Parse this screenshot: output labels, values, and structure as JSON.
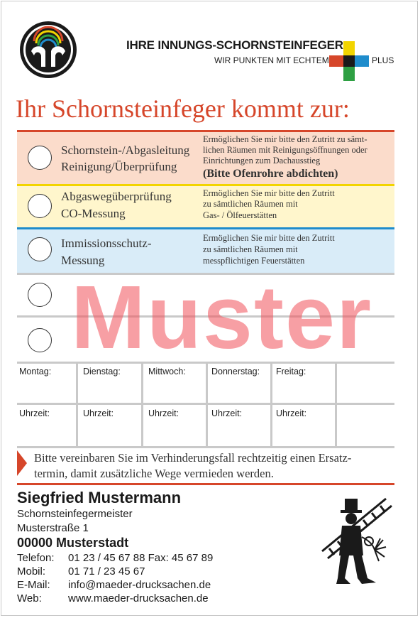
{
  "header": {
    "brand_title": "IHRE INNUNGS-SCHORNSTEINFEGER",
    "brand_subtitle": "WIR PUNKTEN MIT ECHTEM",
    "brand_plus": "PLUS",
    "headline": "Ihr Schornsteinfeger kommt zur:",
    "colors": {
      "accent": "#d6462a",
      "yellow": "#f2d400",
      "blue": "#1f8ccc",
      "green": "#2ea043"
    }
  },
  "options": [
    {
      "label_line1": "Schornstein-/Abgasleitung",
      "label_line2": "Reinigung/Überprüfung",
      "desc_line1": "Ermöglichen Sie mir bitte den Zutritt zu sämt-",
      "desc_line2": "lichen Räumen mit Reinigungsöffnungen oder",
      "desc_line3": "Einrichtungen zum Dachausstieg",
      "note": "(Bitte Ofenrohre abdichten)"
    },
    {
      "label_line1": "Abgaswegüberprüfung",
      "label_line2": "CO-Messung",
      "desc_line1": "Ermöglichen Sie mir bitte den Zutritt",
      "desc_line2": "zu sämtlichen Räumen mit",
      "desc_line3": "Gas- / Ölfeuerstätten"
    },
    {
      "label_line1": "Immissionsschutz-",
      "label_line2": "Messung",
      "desc_line1": "Ermöglichen Sie mir bitte den Zutritt",
      "desc_line2": "zu sämtlichen Räumen mit",
      "desc_line3": "messpflichtigen Feuerstätten"
    }
  ],
  "watermark": "Muster",
  "schedule": {
    "days": [
      "Montag:",
      "Dienstag:",
      "Mittwoch:",
      "Donnerstag:",
      "Freitag:"
    ],
    "time_label": "Uhrzeit:"
  },
  "note": {
    "line1": "Bitte vereinbaren Sie im Verhinderungsfall rechtzeitig einen Ersatz-",
    "line2": "termin, damit zusätzliche Wege vermieden werden."
  },
  "contact": {
    "name": "Siegfried Mustermann",
    "title": "Schornsteinfegermeister",
    "street": "Musterstraße 1",
    "city": "00000 Musterstadt",
    "phone_label": "Telefon:",
    "phone_value": "01 23 / 45 67 88 Fax:  45 67 89",
    "mobile_label": "Mobil:",
    "mobile_value": "01 71 / 23 45 67",
    "email_label": "E-Mail:",
    "email_value": "info@maeder-drucksachen.de",
    "web_label": "Web:",
    "web_value": "www.maeder-drucksachen.de"
  }
}
